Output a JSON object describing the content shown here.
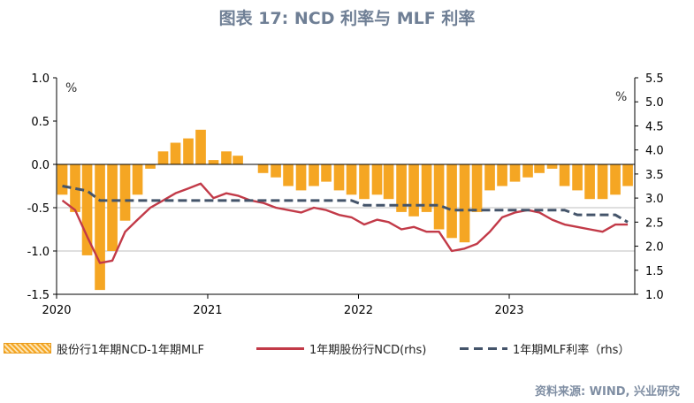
{
  "title": "图表 17: NCD  利率与 MLF 利率",
  "source": "资料来源: WIND, 兴业研究",
  "colors": {
    "bars": "#f5a623",
    "ncd_line": "#c23a48",
    "mlf_line": "#44546a",
    "title": "#6f7f95"
  },
  "chart_data": {
    "type": "bar+line",
    "left_axis": {
      "unit": "%",
      "ylim": [
        -1.5,
        1.0
      ],
      "ticks": [
        "1.0",
        "0.5",
        "0.0",
        "-0.5",
        "-1.0",
        "-1.5"
      ]
    },
    "right_axis": {
      "unit": "%",
      "ylim": [
        1.0,
        5.5
      ],
      "ticks": [
        "5.5",
        "5.0",
        "4.5",
        "4.0",
        "3.5",
        "3.0",
        "2.5",
        "2.0",
        "1.5",
        "1.0"
      ]
    },
    "x_ticks": [
      "2020",
      "2021",
      "2022",
      "2023"
    ],
    "legend_position": "bottom",
    "grid": "horizontal at -0.5 and -1.0",
    "series": [
      {
        "name": "股份行1年期NCD-1年期MLF",
        "kind": "bar",
        "axis": "left",
        "x": [
          "2020-01",
          "2020-02",
          "2020-03",
          "2020-04",
          "2020-05",
          "2020-06",
          "2020-07",
          "2020-08",
          "2020-09",
          "2020-10",
          "2020-11",
          "2020-12",
          "2021-01",
          "2021-02",
          "2021-03",
          "2021-04",
          "2021-05",
          "2021-06",
          "2021-07",
          "2021-08",
          "2021-09",
          "2021-10",
          "2021-11",
          "2021-12",
          "2022-01",
          "2022-02",
          "2022-03",
          "2022-04",
          "2022-05",
          "2022-06",
          "2022-07",
          "2022-08",
          "2022-09",
          "2022-10",
          "2022-11",
          "2022-12",
          "2023-01",
          "2023-02",
          "2023-03",
          "2023-04",
          "2023-05",
          "2023-06",
          "2023-07",
          "2023-08",
          "2023-09",
          "2023-10"
        ],
        "values": [
          -0.35,
          -0.55,
          -1.05,
          -1.45,
          -1.0,
          -0.65,
          -0.35,
          -0.05,
          0.15,
          0.25,
          0.3,
          0.4,
          0.05,
          0.15,
          0.1,
          0.0,
          -0.1,
          -0.15,
          -0.25,
          -0.3,
          -0.25,
          -0.2,
          -0.3,
          -0.35,
          -0.4,
          -0.35,
          -0.4,
          -0.55,
          -0.6,
          -0.55,
          -0.75,
          -0.85,
          -0.9,
          -0.55,
          -0.3,
          -0.25,
          -0.2,
          -0.15,
          -0.1,
          -0.05,
          -0.25,
          -0.3,
          -0.4,
          -0.4,
          -0.35,
          -0.25
        ]
      },
      {
        "name": "1年期股份行NCD(rhs)",
        "kind": "line",
        "axis": "right",
        "x": [
          "2020-01",
          "2020-02",
          "2020-03",
          "2020-04",
          "2020-05",
          "2020-06",
          "2020-07",
          "2020-08",
          "2020-09",
          "2020-10",
          "2020-11",
          "2020-12",
          "2021-01",
          "2021-02",
          "2021-03",
          "2021-04",
          "2021-05",
          "2021-06",
          "2021-07",
          "2021-08",
          "2021-09",
          "2021-10",
          "2021-11",
          "2021-12",
          "2022-01",
          "2022-02",
          "2022-03",
          "2022-04",
          "2022-05",
          "2022-06",
          "2022-07",
          "2022-08",
          "2022-09",
          "2022-10",
          "2022-11",
          "2022-12",
          "2023-01",
          "2023-02",
          "2023-03",
          "2023-04",
          "2023-05",
          "2023-06",
          "2023-07",
          "2023-08",
          "2023-09",
          "2023-10"
        ],
        "values": [
          2.95,
          2.75,
          2.2,
          1.65,
          1.7,
          2.3,
          2.55,
          2.8,
          2.95,
          3.1,
          3.2,
          3.3,
          3.0,
          3.1,
          3.05,
          2.95,
          2.9,
          2.8,
          2.75,
          2.7,
          2.8,
          2.75,
          2.65,
          2.6,
          2.45,
          2.55,
          2.5,
          2.35,
          2.4,
          2.3,
          2.3,
          1.9,
          1.95,
          2.05,
          2.3,
          2.6,
          2.7,
          2.75,
          2.7,
          2.55,
          2.45,
          2.4,
          2.35,
          2.3,
          2.45,
          2.45
        ]
      },
      {
        "name": "1年期MLF利率（rhs）",
        "kind": "line-dashed",
        "axis": "right",
        "x": [
          "2020-01",
          "2020-03",
          "2020-04",
          "2020-10",
          "2021-12",
          "2022-01",
          "2022-07",
          "2022-08",
          "2023-05",
          "2023-06",
          "2023-09",
          "2023-10"
        ],
        "values": [
          3.25,
          3.15,
          2.95,
          2.95,
          2.95,
          2.85,
          2.85,
          2.75,
          2.75,
          2.65,
          2.65,
          2.5
        ]
      }
    ]
  }
}
